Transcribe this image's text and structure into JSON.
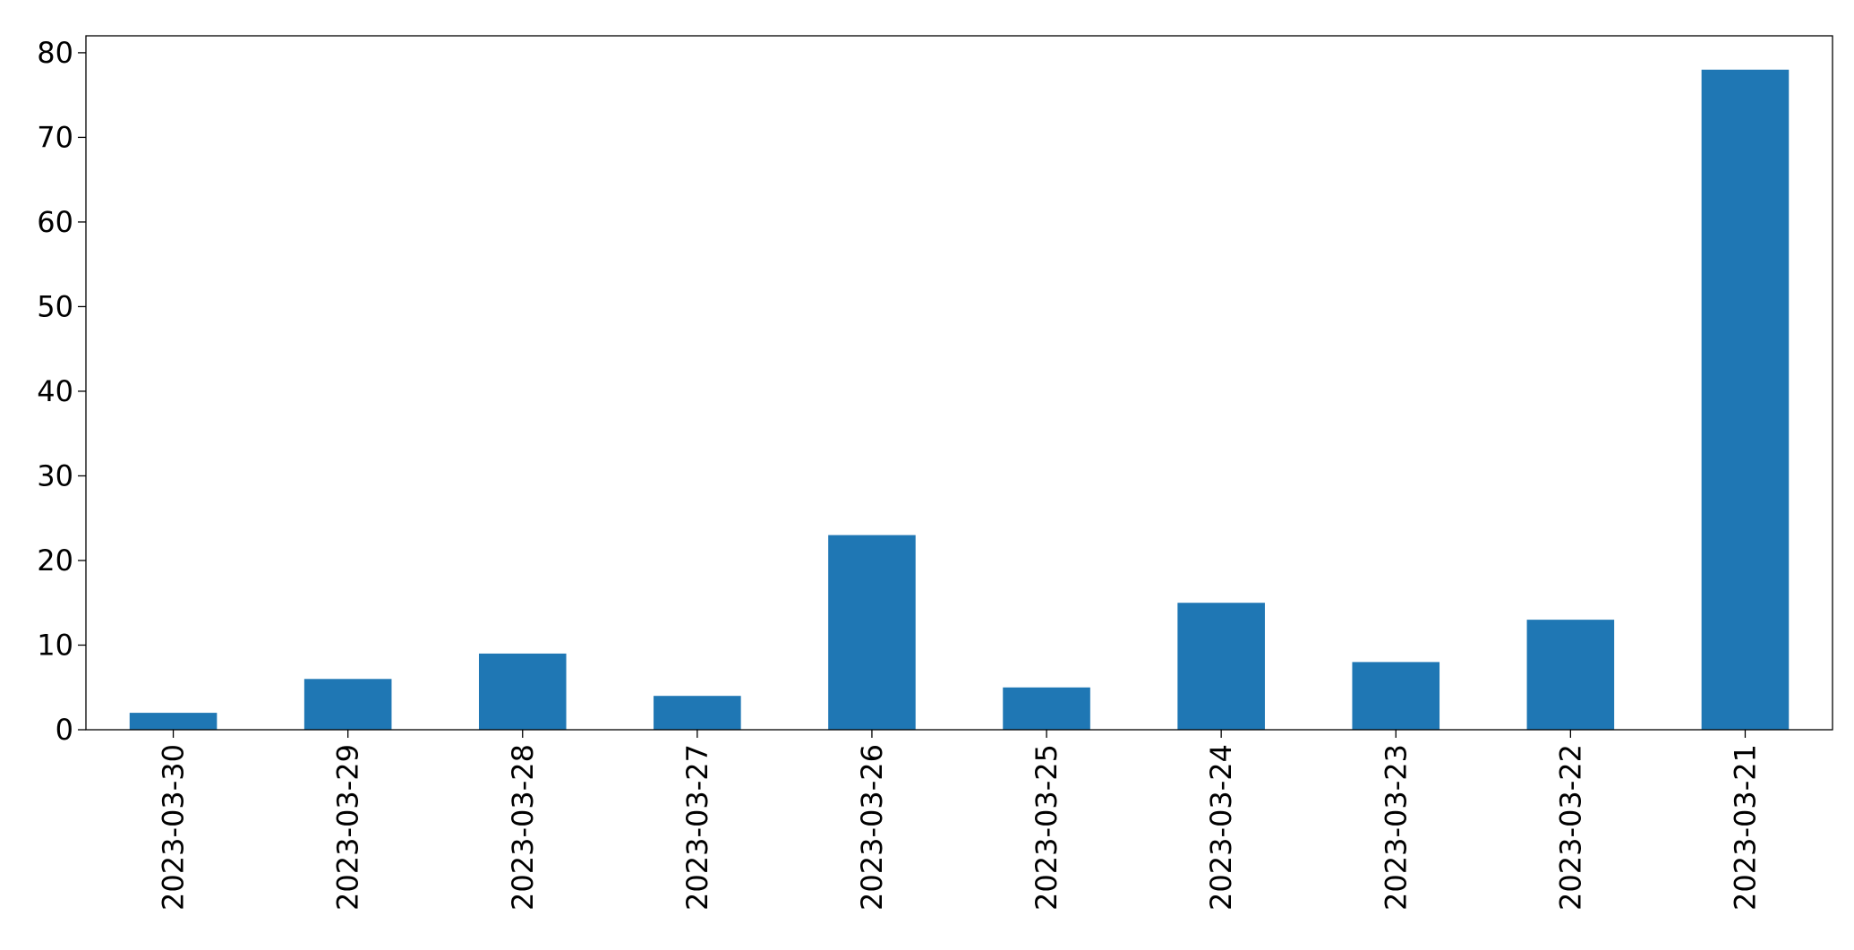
{
  "chart_data": {
    "type": "bar",
    "categories": [
      "2023-03-30",
      "2023-03-29",
      "2023-03-28",
      "2023-03-27",
      "2023-03-26",
      "2023-03-25",
      "2023-03-24",
      "2023-03-23",
      "2023-03-22",
      "2023-03-21"
    ],
    "values": [
      2,
      6,
      9,
      4,
      23,
      5,
      15,
      8,
      13,
      78
    ],
    "color": "#1f77b4",
    "ylim": [
      0,
      82
    ],
    "yticks": [
      0,
      10,
      20,
      30,
      40,
      50,
      60,
      70,
      80
    ],
    "grid": false
  }
}
